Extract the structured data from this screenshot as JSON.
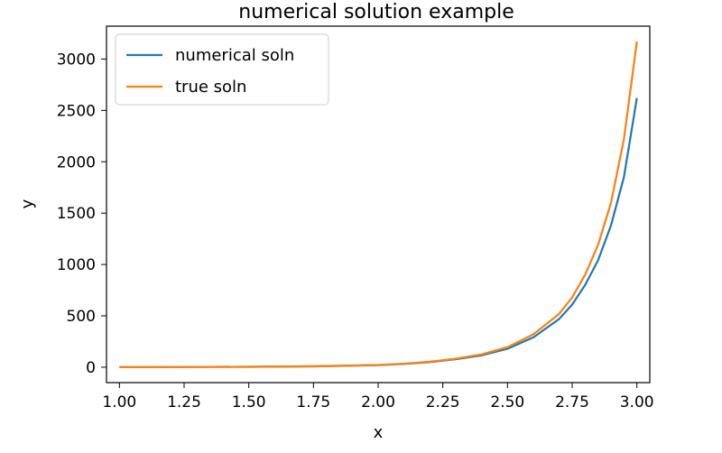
{
  "chart_data": {
    "type": "line",
    "title": "numerical solution example",
    "xlabel": "x",
    "ylabel": "y",
    "xlim": [
      0.95,
      3.05
    ],
    "ylim": [
      -150,
      3320
    ],
    "xticks": [
      1.0,
      1.25,
      1.5,
      1.75,
      2.0,
      2.25,
      2.5,
      2.75,
      3.0
    ],
    "xtick_labels": [
      "1.00",
      "1.25",
      "1.50",
      "1.75",
      "2.00",
      "2.25",
      "2.50",
      "2.75",
      "3.00"
    ],
    "yticks": [
      0,
      500,
      1000,
      1500,
      2000,
      2500,
      3000
    ],
    "ytick_labels": [
      "0",
      "500",
      "1000",
      "1500",
      "2000",
      "2500",
      "3000"
    ],
    "grid": false,
    "legend_position": "upper-left",
    "x": [
      1.0,
      1.25,
      1.5,
      1.75,
      2.0,
      2.1,
      2.2,
      2.3,
      2.4,
      2.5,
      2.6,
      2.7,
      2.75,
      2.8,
      2.85,
      2.9,
      2.95,
      3.0
    ],
    "series": [
      {
        "name": "numerical soln",
        "color": "#1f77b4",
        "values": [
          1,
          2,
          4,
          8,
          20,
          32,
          50,
          78,
          115,
          180,
          290,
          470,
          610,
          800,
          1040,
          1380,
          1850,
          2620
        ]
      },
      {
        "name": "true soln",
        "color": "#ff7f0e",
        "values": [
          1,
          2,
          4,
          9,
          21,
          34,
          53,
          83,
          125,
          195,
          320,
          520,
          680,
          900,
          1190,
          1600,
          2220,
          3170
        ]
      }
    ]
  }
}
